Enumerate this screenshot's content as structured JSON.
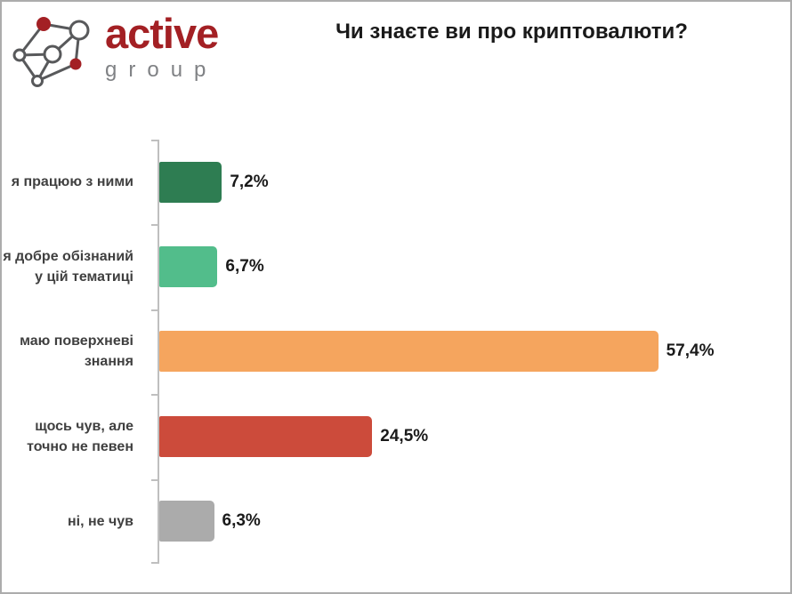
{
  "logo": {
    "brand": "active",
    "sub": "group",
    "icon": "network-graph-icon",
    "brand_color": "#A32024",
    "sub_color": "#808285"
  },
  "title": "Чи знаєте ви про криптовалюти?",
  "chart_data": {
    "type": "bar",
    "orientation": "horizontal",
    "title": "Чи знаєте ви про криптовалюти?",
    "xlabel": "",
    "ylabel": "",
    "categories": [
      "я працюю з ними",
      "я добре обізнаний у цій тематиці",
      "маю поверхневі знання",
      "щось чув, але точно не певен",
      "ні, не чув"
    ],
    "values": [
      7.2,
      6.7,
      57.4,
      24.5,
      6.3
    ],
    "value_labels": [
      "7,2%",
      "6,7%",
      "57,4%",
      "24,5%",
      "6,3%"
    ],
    "bar_colors": [
      "#2E7D52",
      "#52BD8B",
      "#F5A55E",
      "#CC4B3B",
      "#ABABAB"
    ],
    "xlim": [
      0,
      60
    ],
    "grid": false,
    "legend_position": "none",
    "axis_color": "#BFBFBF",
    "label_color": "#404040",
    "value_color": "#1A1A1A"
  },
  "colors": {
    "frame_border": "#ACACAC",
    "background": "#FFFFFF"
  }
}
